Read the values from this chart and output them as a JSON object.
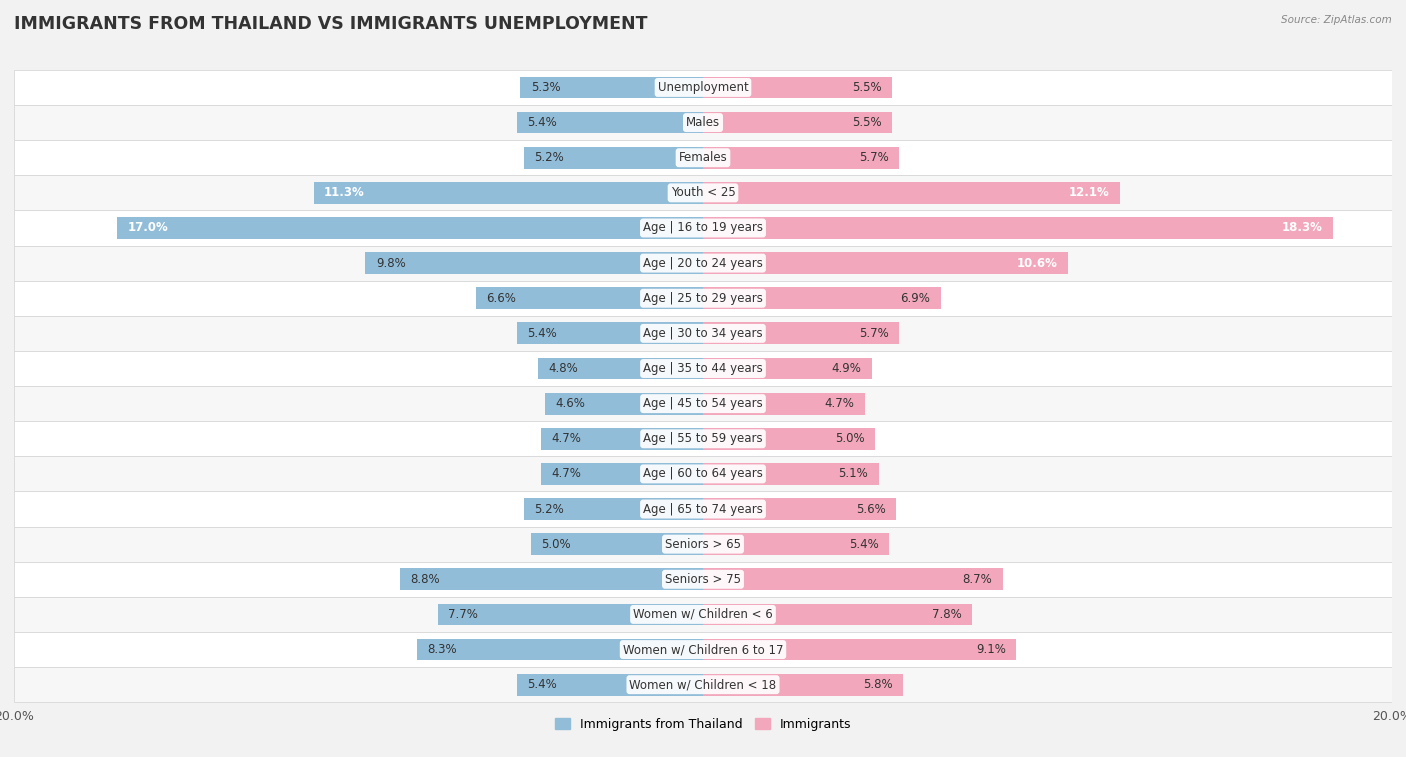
{
  "title": "IMMIGRANTS FROM THAILAND VS IMMIGRANTS UNEMPLOYMENT",
  "source": "Source: ZipAtlas.com",
  "categories": [
    "Unemployment",
    "Males",
    "Females",
    "Youth < 25",
    "Age | 16 to 19 years",
    "Age | 20 to 24 years",
    "Age | 25 to 29 years",
    "Age | 30 to 34 years",
    "Age | 35 to 44 years",
    "Age | 45 to 54 years",
    "Age | 55 to 59 years",
    "Age | 60 to 64 years",
    "Age | 65 to 74 years",
    "Seniors > 65",
    "Seniors > 75",
    "Women w/ Children < 6",
    "Women w/ Children 6 to 17",
    "Women w/ Children < 18"
  ],
  "thailand_values": [
    5.3,
    5.4,
    5.2,
    11.3,
    17.0,
    9.8,
    6.6,
    5.4,
    4.8,
    4.6,
    4.7,
    4.7,
    5.2,
    5.0,
    8.8,
    7.7,
    8.3,
    5.4
  ],
  "immigrants_values": [
    5.5,
    5.5,
    5.7,
    12.1,
    18.3,
    10.6,
    6.9,
    5.7,
    4.9,
    4.7,
    5.0,
    5.1,
    5.6,
    5.4,
    8.7,
    7.8,
    9.1,
    5.8
  ],
  "thailand_color": "#92BDD9",
  "immigrants_color": "#F2A7BC",
  "row_bg_light": "#f5f5f5",
  "row_bg_dark": "#e8e8e8",
  "background_color": "#f2f2f2",
  "xlim": 20.0,
  "bar_height": 0.62,
  "title_fontsize": 12.5,
  "label_fontsize": 8.5,
  "value_fontsize": 8.5
}
